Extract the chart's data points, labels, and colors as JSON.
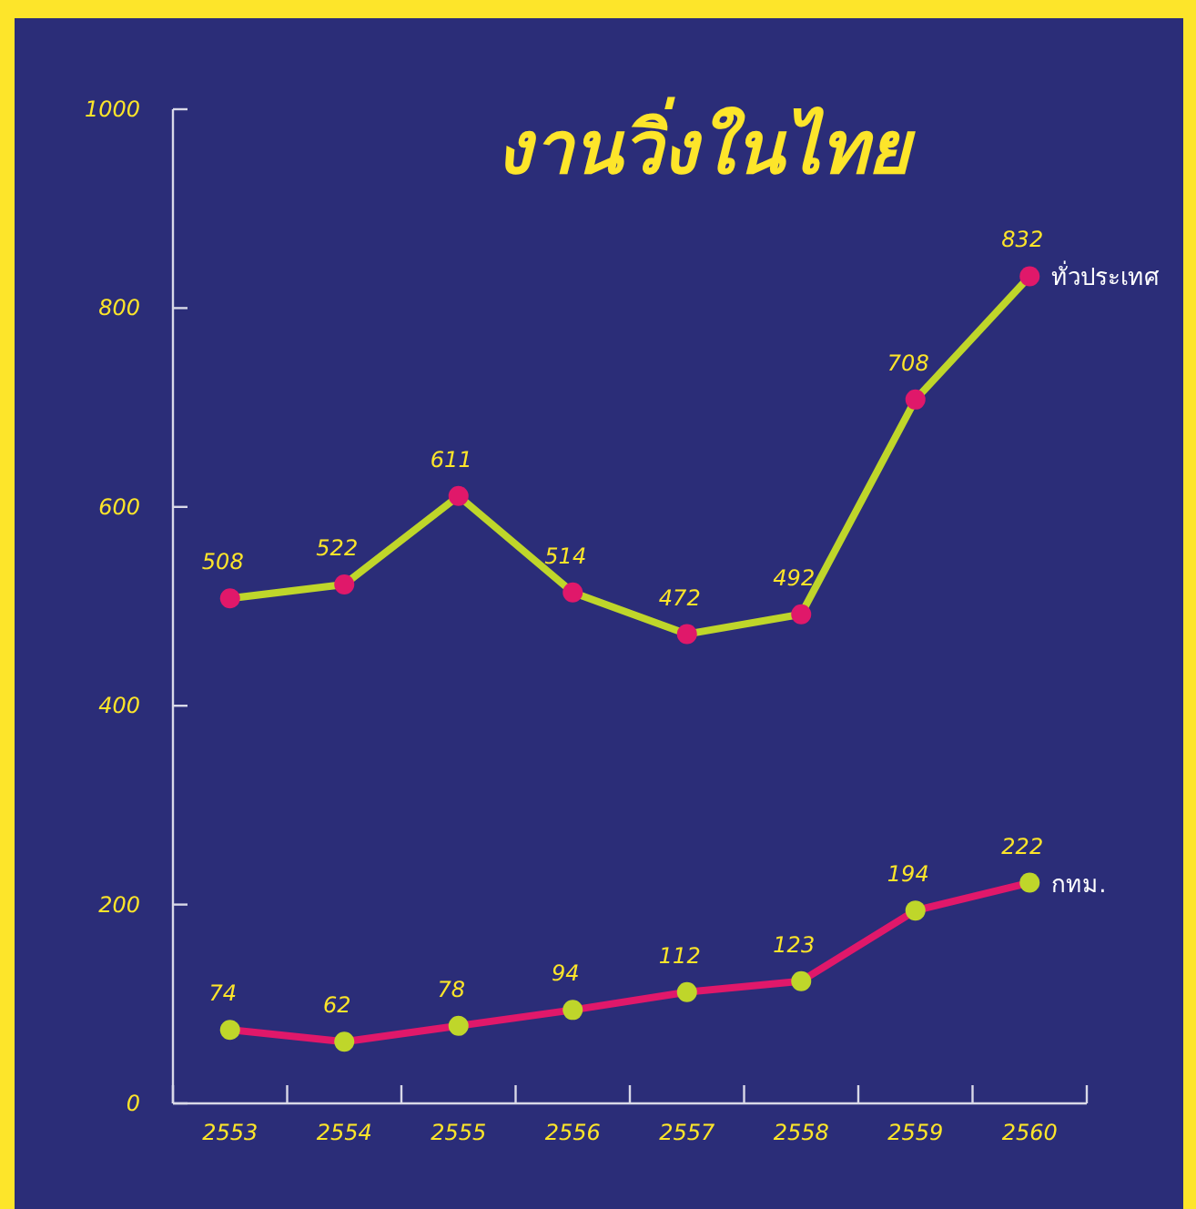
{
  "chart_data": {
    "type": "line",
    "title": "งานวิ่งในไทย",
    "categories": [
      "2553",
      "2554",
      "2555",
      "2556",
      "2557",
      "2558",
      "2559",
      "2560"
    ],
    "series": [
      {
        "name": "ทั่วประเทศ",
        "color": "#bfd62a",
        "values": [
          508,
          522,
          611,
          514,
          472,
          492,
          708,
          832
        ]
      },
      {
        "name": "กทม.",
        "color": "#e0186a",
        "values": [
          74,
          62,
          78,
          94,
          112,
          123,
          194,
          222
        ]
      }
    ],
    "ylim": [
      0,
      1000
    ],
    "yticks": [
      0,
      200,
      400,
      600,
      800,
      1000
    ],
    "grid": false,
    "marker": "circle",
    "line_style": "solid",
    "data_labels": true
  }
}
